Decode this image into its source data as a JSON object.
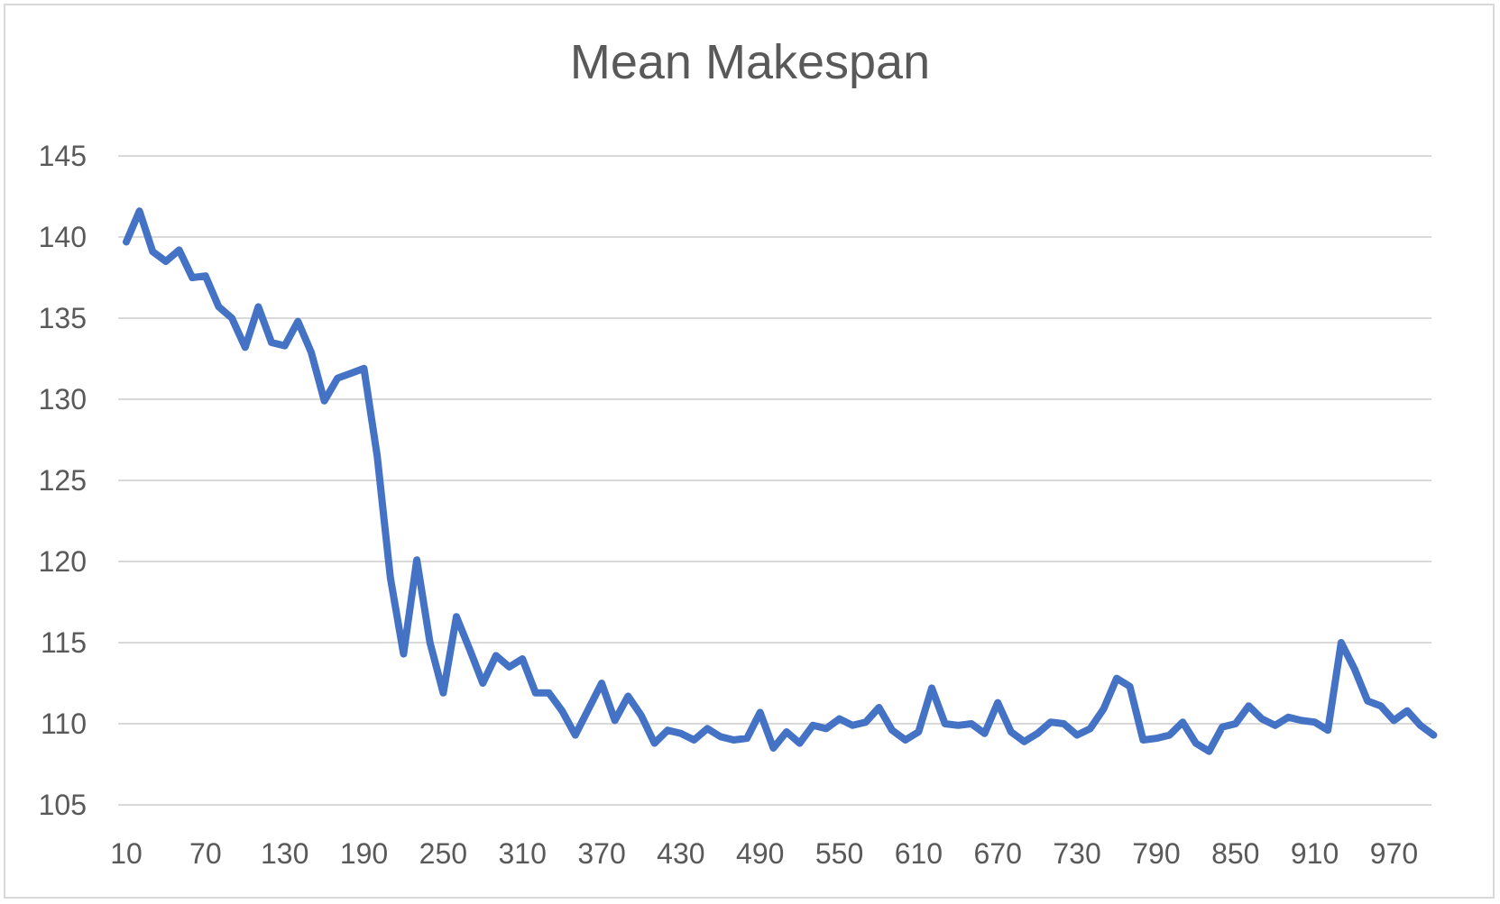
{
  "chart_data": {
    "type": "line",
    "title": "Mean Makespan",
    "xlabel": "",
    "ylabel": "",
    "ylim": [
      105,
      145
    ],
    "yticks": [
      105,
      110,
      115,
      120,
      125,
      130,
      135,
      140,
      145
    ],
    "xticks": [
      "10",
      "70",
      "130",
      "190",
      "250",
      "310",
      "370",
      "430",
      "490",
      "550",
      "610",
      "670",
      "730",
      "790",
      "850",
      "910",
      "970"
    ],
    "grid": true,
    "legend": "none",
    "series": [
      {
        "color": "#4472c4",
        "x": [
          10,
          20,
          30,
          40,
          50,
          60,
          70,
          80,
          90,
          100,
          110,
          120,
          130,
          140,
          150,
          160,
          170,
          180,
          190,
          200,
          210,
          220,
          230,
          240,
          250,
          260,
          270,
          280,
          290,
          300,
          310,
          320,
          330,
          340,
          350,
          360,
          370,
          380,
          390,
          400,
          410,
          420,
          430,
          440,
          450,
          460,
          470,
          480,
          490,
          500,
          510,
          520,
          530,
          540,
          550,
          560,
          570,
          580,
          590,
          600,
          610,
          620,
          630,
          640,
          650,
          660,
          670,
          680,
          690,
          700,
          710,
          720,
          730,
          740,
          750,
          760,
          770,
          780,
          790,
          800,
          810,
          820,
          830,
          840,
          850,
          860,
          870,
          880,
          890,
          900,
          910,
          920,
          930,
          940,
          950,
          960,
          970,
          980,
          990,
          1000
        ],
        "y": [
          139.7,
          141.6,
          139.1,
          138.5,
          139.2,
          137.5,
          137.6,
          135.7,
          135.0,
          133.2,
          135.7,
          133.5,
          133.3,
          134.8,
          132.9,
          129.9,
          131.3,
          131.6,
          131.9,
          126.5,
          119.0,
          114.3,
          120.1,
          115.0,
          111.9,
          116.6,
          114.6,
          112.5,
          114.2,
          113.5,
          114.0,
          111.9,
          111.9,
          110.8,
          109.3,
          110.9,
          112.5,
          110.2,
          111.7,
          110.5,
          108.8,
          109.6,
          109.4,
          109.0,
          109.7,
          109.2,
          109.0,
          109.1,
          110.7,
          108.5,
          109.5,
          108.8,
          109.9,
          109.7,
          110.3,
          109.9,
          110.1,
          111.0,
          109.6,
          109.0,
          109.5,
          112.2,
          110.0,
          109.9,
          110.0,
          109.4,
          111.3,
          109.5,
          108.9,
          109.4,
          110.1,
          110.0,
          109.3,
          109.7,
          110.9,
          112.8,
          112.3,
          109.0,
          109.1,
          109.3,
          110.1,
          108.8,
          108.3,
          109.8,
          110.0,
          111.1,
          110.3,
          109.9,
          110.4,
          110.2,
          110.1,
          109.6,
          115.0,
          113.4,
          111.4,
          111.1,
          110.2,
          110.8,
          109.9,
          109.3
        ]
      }
    ]
  }
}
